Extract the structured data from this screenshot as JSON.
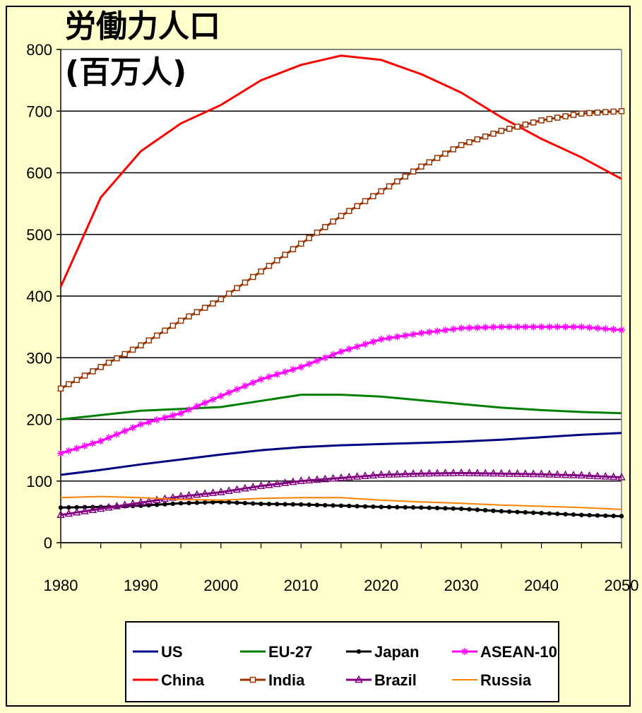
{
  "chart_data": {
    "type": "line",
    "title_lines": [
      "労働力人口",
      "(百万人)"
    ],
    "xlabel": "",
    "ylabel": "",
    "x_ticks": [
      1980,
      1990,
      2000,
      2010,
      2020,
      2030,
      2040,
      2050
    ],
    "y_ticks": [
      0,
      100,
      200,
      300,
      400,
      500,
      600,
      700,
      800
    ],
    "xlim": [
      1980,
      2050
    ],
    "ylim": [
      0,
      800
    ],
    "grid": "horizontal",
    "legend_position": "bottom",
    "x": [
      1980,
      1985,
      1990,
      1995,
      2000,
      2005,
      2010,
      2015,
      2020,
      2025,
      2030,
      2035,
      2040,
      2045,
      2050
    ],
    "series": [
      {
        "name": "US",
        "color": "#000080",
        "marker": "none",
        "values": [
          110,
          118,
          127,
          135,
          143,
          150,
          155,
          158,
          160,
          162,
          164,
          167,
          171,
          175,
          178
        ]
      },
      {
        "name": "EU-27",
        "color": "#008000",
        "marker": "none",
        "values": [
          200,
          207,
          214,
          217,
          220,
          230,
          240,
          240,
          237,
          231,
          225,
          219,
          215,
          212,
          210
        ]
      },
      {
        "name": "Japan",
        "color": "#000000",
        "marker": "dot",
        "values": [
          57,
          58,
          60,
          64,
          66,
          63,
          62,
          60,
          58,
          57,
          55,
          51,
          48,
          45,
          43
        ]
      },
      {
        "name": "ASEAN-10",
        "color": "#ff00ff",
        "marker": "star",
        "values": [
          145,
          165,
          192,
          210,
          238,
          265,
          285,
          310,
          330,
          340,
          348,
          350,
          350,
          350,
          345
        ]
      },
      {
        "name": "China",
        "color": "#ff0000",
        "marker": "none",
        "values": [
          415,
          560,
          635,
          680,
          710,
          750,
          775,
          790,
          783,
          760,
          730,
          690,
          655,
          625,
          590
        ]
      },
      {
        "name": "India",
        "color": "#993300",
        "marker": "square",
        "values": [
          250,
          285,
          320,
          360,
          395,
          440,
          485,
          530,
          570,
          610,
          645,
          668,
          685,
          696,
          700
        ]
      },
      {
        "name": "Brazil",
        "color": "#800080",
        "marker": "triangle",
        "values": [
          45,
          55,
          65,
          75,
          82,
          92,
          100,
          105,
          110,
          112,
          113,
          112,
          111,
          109,
          106
        ]
      },
      {
        "name": "Russia",
        "color": "#ff8000",
        "marker": "none",
        "values": [
          73,
          75,
          73,
          70,
          69,
          72,
          73,
          73,
          69,
          66,
          64,
          61,
          59,
          57,
          54
        ]
      }
    ]
  }
}
